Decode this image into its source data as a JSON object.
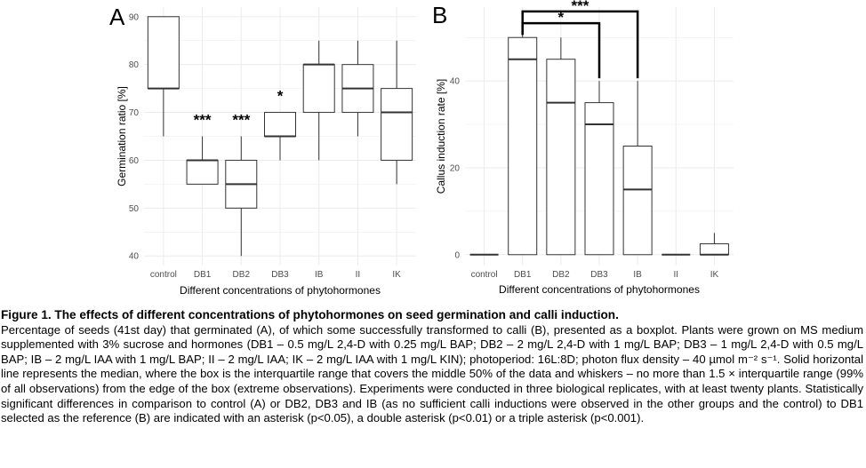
{
  "figure": {
    "caption_title": "Figure 1. The effects of different concentrations of phytohormones on seed germination and calli induction.",
    "caption_body": "Percentage of seeds (41st day) that germinated (A), of which some successfully transformed to calli (B), presented as a boxplot. Plants were grown on MS medium supplemented with 3% sucrose and hormones (DB1 – 0.5 mg/L 2,4-D with 0.25 mg/L BAP; DB2 – 2 mg/L 2,4-D with 1 mg/L BAP; DB3 – 1 mg/L 2,4-D with 0.5 mg/L BAP; IB – 2 mg/L IAA with 1 mg/L BAP; II – 2 mg/L IAA; IK – 2 mg/L IAA with 1 mg/L KIN); photoperiod: 16L:8D; photon flux density – 40 µmol m⁻² s⁻¹. Solid horizontal line represents the median, where the box is the interquartile range that covers the middle 50% of the data and whiskers – no more than 1.5 × interquartile range (99% of all observations) from the edge of the box (extreme observations). Experiments were conducted in three biological replicates, with at least twenty plants. Statistically significant differences in comparison to control (A) or DB2, DB3 and IB (as no sufficient calli inductions were observed in the other groups and the control) to DB1 selected as the reference (B) are indicated with an asterisk (p<0.05), a double asterisk (p<0.01) or a triple asterisk (p<0.001)."
  },
  "colors": {
    "panel_background": "#ffffff",
    "grid": "#ebebeb",
    "box_stroke": "#333333",
    "tick_text": "#4d4d4d",
    "significance_bracket": "#000000"
  },
  "chart_data": [
    {
      "type": "boxplot",
      "panel_label": "A",
      "title": "",
      "xlabel": "Different concentrations of phytohormones",
      "ylabel": "Germination ratio [%]",
      "ylim": [
        38,
        92
      ],
      "yticks": [
        40,
        50,
        60,
        70,
        80,
        90
      ],
      "ytick_labels": [
        "40",
        "50",
        "60",
        "70",
        "80",
        "90"
      ],
      "grid": true,
      "categories": [
        "control",
        "DB1",
        "DB2",
        "DB3",
        "IB",
        "II",
        "IK"
      ],
      "boxes": [
        {
          "category": "control",
          "min": 65,
          "q1": 75,
          "median": 75,
          "q3": 90,
          "max": 90
        },
        {
          "category": "DB1",
          "min": 55,
          "q1": 55,
          "median": 60,
          "q3": 60,
          "max": 65
        },
        {
          "category": "DB2",
          "min": 40,
          "q1": 50,
          "median": 55,
          "q3": 60,
          "max": 65
        },
        {
          "category": "DB3",
          "min": 60,
          "q1": 65,
          "median": 65,
          "q3": 70,
          "max": 70
        },
        {
          "category": "IB",
          "min": 60,
          "q1": 70,
          "median": 80,
          "q3": 80,
          "max": 85
        },
        {
          "category": "II",
          "min": 65,
          "q1": 70,
          "median": 75,
          "q3": 80,
          "max": 85
        },
        {
          "category": "IK",
          "min": 55,
          "q1": 60,
          "median": 70,
          "q3": 75,
          "max": 85
        }
      ],
      "significance": [
        {
          "category": "DB1",
          "label": "***",
          "y": 68.5
        },
        {
          "category": "DB2",
          "label": "***",
          "y": 68.5
        },
        {
          "category": "DB3",
          "label": "*",
          "y": 73.5
        }
      ]
    },
    {
      "type": "boxplot",
      "panel_label": "B",
      "title": "",
      "xlabel": "Different concentrations of phytohormones",
      "ylabel": "Callus induction rate [%]",
      "ylim": [
        -2.5,
        57
      ],
      "yticks": [
        0,
        20,
        40
      ],
      "ytick_labels": [
        "0",
        "20",
        "40"
      ],
      "grid": true,
      "categories": [
        "control",
        "DB1",
        "DB2",
        "DB3",
        "IB",
        "II",
        "IK"
      ],
      "boxes": [
        {
          "category": "control",
          "min": 0,
          "q1": 0,
          "median": 0,
          "q3": 0,
          "max": 0
        },
        {
          "category": "DB1",
          "min": 0,
          "q1": 0,
          "median": 45,
          "q3": 50,
          "max": 55
        },
        {
          "category": "DB2",
          "min": 0,
          "q1": 0,
          "median": 35,
          "q3": 45,
          "max": 50
        },
        {
          "category": "DB3",
          "min": 0,
          "q1": 0,
          "median": 30,
          "q3": 35,
          "max": 40
        },
        {
          "category": "IB",
          "min": 0,
          "q1": 0,
          "median": 15,
          "q3": 25,
          "max": 40
        },
        {
          "category": "II",
          "min": 0,
          "q1": 0,
          "median": 0,
          "q3": 0,
          "max": 0
        },
        {
          "category": "IK",
          "min": 0,
          "q1": 0,
          "median": 0,
          "q3": 2.5,
          "max": 5
        }
      ],
      "brackets": [
        {
          "from": "DB1",
          "to": "DB3",
          "label": "*",
          "y": 53.3
        },
        {
          "from": "DB1",
          "to": "IB",
          "label": "***",
          "y": 56.0
        }
      ]
    }
  ]
}
